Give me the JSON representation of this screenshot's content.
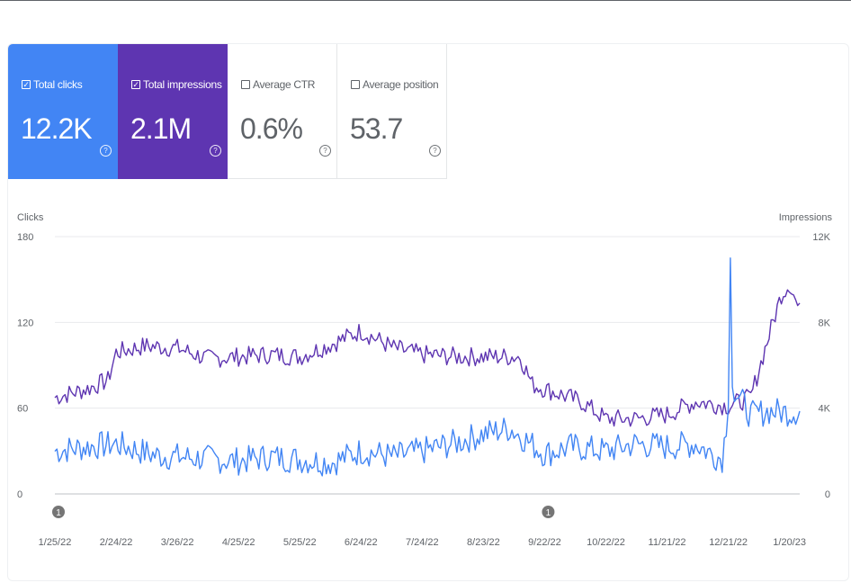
{
  "metric_cards": [
    {
      "label": "Total clicks",
      "value": "12.2K",
      "checked": true,
      "color": "#4285f4"
    },
    {
      "label": "Total impressions",
      "value": "2.1M",
      "checked": true,
      "color": "#5e35b1"
    },
    {
      "label": "Average CTR",
      "value": "0.6%",
      "checked": false,
      "color": "#ffffff"
    },
    {
      "label": "Average position",
      "value": "53.7",
      "checked": false,
      "color": "#ffffff"
    }
  ],
  "help_icon": "question-circle-icon",
  "chart_data": {
    "type": "line",
    "xlabel": "",
    "left_axis": {
      "label": "Clicks",
      "range": [
        0,
        180
      ],
      "ticks": [
        "0",
        "60",
        "120",
        "180"
      ]
    },
    "right_axis": {
      "label": "Impressions",
      "range": [
        0,
        12000
      ],
      "ticks": [
        "0",
        "4K",
        "8K",
        "12K"
      ]
    },
    "x_range": [
      "1/25/22",
      "1/25/23"
    ],
    "x_ticks": [
      "1/25/22",
      "2/24/22",
      "3/26/22",
      "4/25/22",
      "5/25/22",
      "6/24/22",
      "7/24/22",
      "8/23/22",
      "9/22/22",
      "10/22/22",
      "11/21/22",
      "12/21/22",
      "1/20/23"
    ],
    "grid": true,
    "annotations": [
      {
        "date": "1/25/22",
        "label": "1"
      },
      {
        "date": "9/22/22",
        "label": "1"
      }
    ],
    "series": [
      {
        "name": "Total clicks",
        "axis": "left",
        "color": "#4285f4",
        "points": [
          [
            "1/25/22",
            30
          ],
          [
            "2/10/22",
            33
          ],
          [
            "2/24/22",
            35
          ],
          [
            "3/15/22",
            27
          ],
          [
            "4/5/22",
            25
          ],
          [
            "4/25/22",
            23
          ],
          [
            "5/10/22",
            26
          ],
          [
            "5/25/22",
            24
          ],
          [
            "6/10/22",
            22
          ],
          [
            "6/24/22",
            30
          ],
          [
            "7/10/22",
            26
          ],
          [
            "7/24/22",
            30
          ],
          [
            "8/10/22",
            36
          ],
          [
            "8/23/22",
            42
          ],
          [
            "9/5/22",
            46
          ],
          [
            "9/22/22",
            28
          ],
          [
            "10/5/22",
            33
          ],
          [
            "10/22/22",
            30
          ],
          [
            "11/5/22",
            35
          ],
          [
            "11/21/22",
            33
          ],
          [
            "12/5/22",
            35
          ],
          [
            "12/14/22",
            27
          ],
          [
            "12/18/22",
            25
          ],
          [
            "12/21/22",
            60
          ],
          [
            "12/22/22",
            165
          ],
          [
            "12/23/22",
            75
          ],
          [
            "1/1/23",
            55
          ],
          [
            "1/10/23",
            58
          ],
          [
            "1/20/23",
            57
          ],
          [
            "1/25/23",
            58
          ]
        ]
      },
      {
        "name": "Total impressions",
        "axis": "right",
        "color": "#5e35b1",
        "points": [
          [
            "1/25/22",
            4500
          ],
          [
            "2/10/22",
            4900
          ],
          [
            "2/20/22",
            5300
          ],
          [
            "2/24/22",
            6600
          ],
          [
            "3/10/22",
            6900
          ],
          [
            "3/26/22",
            6800
          ],
          [
            "4/10/22",
            6300
          ],
          [
            "4/25/22",
            6400
          ],
          [
            "5/10/22",
            6500
          ],
          [
            "5/25/22",
            6400
          ],
          [
            "6/10/22",
            7000
          ],
          [
            "6/24/22",
            7600
          ],
          [
            "7/10/22",
            6800
          ],
          [
            "7/24/22",
            6500
          ],
          [
            "8/10/22",
            6400
          ],
          [
            "8/23/22",
            6400
          ],
          [
            "9/10/22",
            6400
          ],
          [
            "9/16/22",
            5100
          ],
          [
            "9/22/22",
            4900
          ],
          [
            "10/10/22",
            4300
          ],
          [
            "10/22/22",
            3500
          ],
          [
            "11/5/22",
            3500
          ],
          [
            "11/21/22",
            3700
          ],
          [
            "12/5/22",
            4300
          ],
          [
            "12/21/22",
            4100
          ],
          [
            "1/1/23",
            4500
          ],
          [
            "1/10/23",
            7400
          ],
          [
            "1/16/23",
            9300
          ],
          [
            "1/20/23",
            9800
          ],
          [
            "1/25/23",
            8500
          ]
        ]
      }
    ]
  }
}
